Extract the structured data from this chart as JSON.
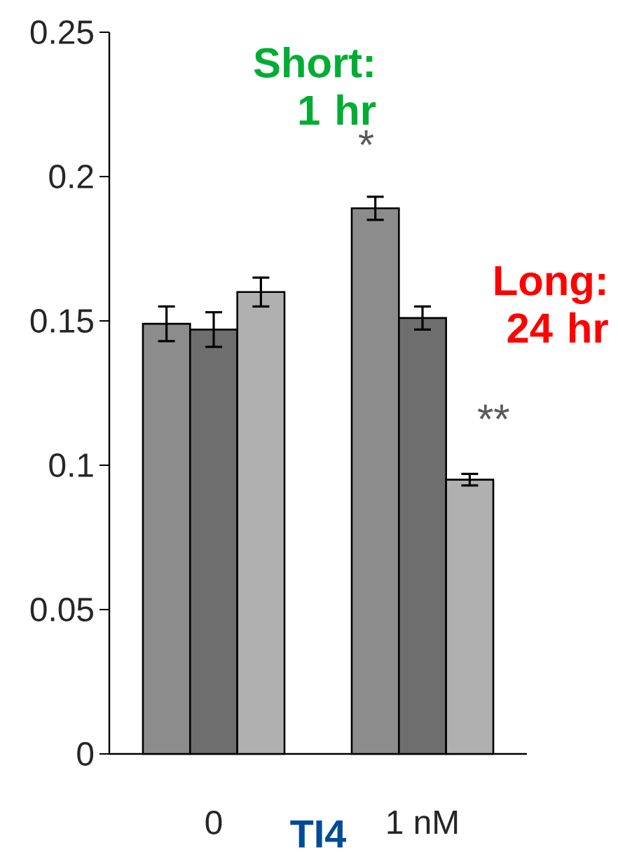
{
  "chart_data": {
    "type": "bar",
    "xlabel": "TI4",
    "categories": [
      "0",
      "1 nM"
    ],
    "series": [
      {
        "color": "#8c8c8c",
        "values": [
          0.149,
          0.189
        ],
        "errors": [
          0.006,
          0.004
        ]
      },
      {
        "color": "#6e6e6e",
        "values": [
          0.147,
          0.151
        ],
        "errors": [
          0.006,
          0.004
        ]
      },
      {
        "color": "#b0b0b0",
        "values": [
          0.16,
          0.095
        ],
        "errors": [
          0.005,
          0.002
        ]
      }
    ],
    "ylim": [
      0,
      0.25
    ],
    "yticks": [
      0,
      0.05,
      0.1,
      0.15,
      0.2,
      0.25
    ],
    "grid": false,
    "annotations": [
      "Short: 1 hr",
      "*",
      "Long: 24 hr",
      "**"
    ]
  }
}
